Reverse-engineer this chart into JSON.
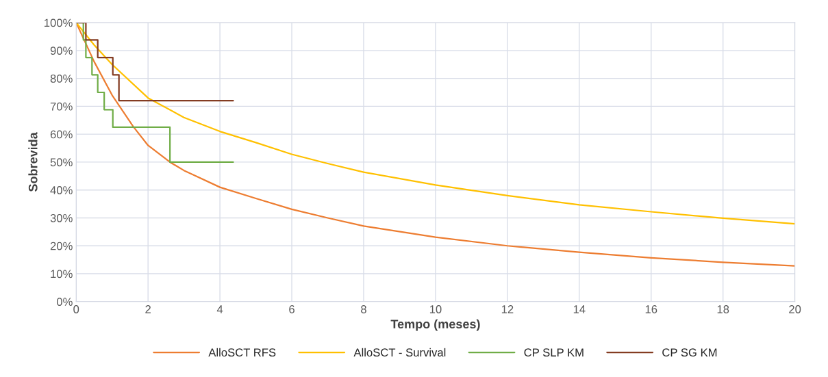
{
  "chart_data": {
    "type": "line",
    "xlabel": "Tempo (meses)",
    "ylabel": "Sobrevida",
    "xlim": [
      0,
      20
    ],
    "xticks": [
      0,
      2,
      4,
      6,
      8,
      10,
      12,
      14,
      16,
      18,
      20
    ],
    "ylim": [
      0,
      100
    ],
    "yticks": [
      {
        "value": 0,
        "label": "0%"
      },
      {
        "value": 10,
        "label": "10%"
      },
      {
        "value": 20,
        "label": "20%"
      },
      {
        "value": 30,
        "label": "30%"
      },
      {
        "value": 40,
        "label": "40%"
      },
      {
        "value": 50,
        "label": "50%"
      },
      {
        "value": 60,
        "label": "60%"
      },
      {
        "value": 70,
        "label": "70%"
      },
      {
        "value": 80,
        "label": "80%"
      },
      {
        "value": 90,
        "label": "90%"
      },
      {
        "value": 100,
        "label": "100%"
      }
    ],
    "grid": true,
    "legend": "bottom",
    "marker": "none",
    "series": [
      {
        "name": "AlloSCT RFS",
        "color": "#ed7d31",
        "x": [
          0,
          0.5,
          1,
          1.59,
          2,
          2.61,
          3,
          4,
          5,
          6,
          7,
          8,
          10,
          12,
          14,
          16,
          18,
          20
        ],
        "values": [
          100,
          86,
          74,
          62.7,
          56,
          50,
          47,
          41,
          37,
          33.1,
          30,
          27.1,
          23.1,
          20,
          17.7,
          15.7,
          14.1,
          12.8
        ]
      },
      {
        "name": "AlloSCT - Survival",
        "color": "#ffc000",
        "x": [
          0,
          0.5,
          1,
          2,
          3,
          4,
          5,
          6,
          7,
          8,
          10,
          12,
          14,
          16,
          18,
          20
        ],
        "values": [
          100,
          92,
          85,
          73,
          66,
          61,
          57,
          52.8,
          49.5,
          46.4,
          41.8,
          38,
          34.7,
          32.2,
          29.9,
          27.9
        ]
      },
      {
        "name": "CP SLP KM",
        "color": "#70ad47",
        "type": "step",
        "x": [
          0,
          0.2,
          0.27,
          0.44,
          0.6,
          0.78,
          1.02,
          2.61,
          4.37
        ],
        "values": [
          100,
          93.8,
          87.5,
          81.3,
          75,
          68.8,
          62.5,
          50,
          50
        ]
      },
      {
        "name": "CP SG KM",
        "color": "#843c22",
        "type": "step",
        "x": [
          0,
          0.27,
          0.6,
          1.02,
          1.19,
          4.37
        ],
        "values": [
          100,
          93.8,
          87.5,
          81.3,
          72,
          72
        ]
      }
    ]
  }
}
